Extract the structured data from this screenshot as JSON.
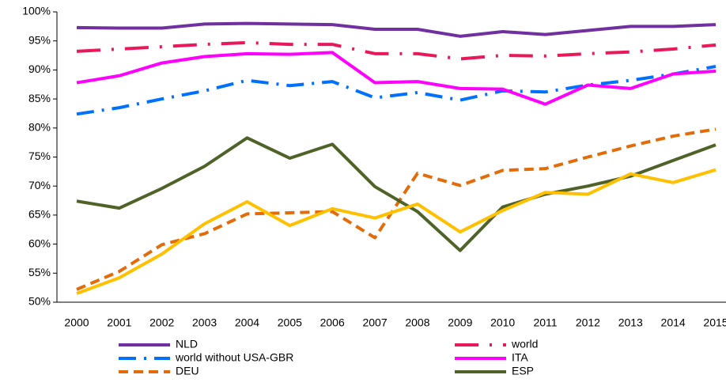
{
  "chart_data": {
    "type": "line",
    "categories": [
      "2000",
      "2001",
      "2002",
      "2003",
      "2004",
      "2005",
      "2006",
      "2007",
      "2008",
      "2009",
      "2010",
      "2011",
      "2012",
      "2013",
      "2014",
      "2015"
    ],
    "ylim": [
      50,
      100
    ],
    "yticks": [
      {
        "value": 50,
        "label": "50%"
      },
      {
        "value": 55,
        "label": "55%"
      },
      {
        "value": 60,
        "label": "60%"
      },
      {
        "value": 65,
        "label": "65%"
      },
      {
        "value": 70,
        "label": "70%"
      },
      {
        "value": 75,
        "label": "75%"
      },
      {
        "value": 80,
        "label": "80%"
      },
      {
        "value": 85,
        "label": "85%"
      },
      {
        "value": 90,
        "label": "90%"
      },
      {
        "value": 95,
        "label": "95%"
      },
      {
        "value": 100,
        "label": "100%"
      }
    ],
    "grid": false,
    "series": [
      {
        "name": "NLD",
        "color": "#7030a0",
        "dash": "solid",
        "values": [
          97.3,
          97.2,
          97.2,
          97.9,
          98.0,
          97.9,
          97.8,
          97.0,
          97.0,
          95.8,
          96.6,
          96.1,
          96.8,
          97.5,
          97.5,
          97.8
        ]
      },
      {
        "name": "world",
        "color": "#e8185a",
        "dash": "dash-dot-long",
        "values": [
          93.2,
          93.6,
          94.0,
          94.4,
          94.7,
          94.4,
          94.4,
          92.8,
          92.8,
          91.9,
          92.5,
          92.4,
          92.8,
          93.1,
          93.6,
          94.3
        ]
      },
      {
        "name": "world without USA-GBR",
        "color": "#0070ff",
        "dash": "dash-dot",
        "values": [
          82.4,
          83.5,
          85.0,
          86.4,
          88.2,
          87.3,
          88.0,
          85.2,
          86.1,
          84.8,
          86.4,
          86.2,
          87.4,
          88.2,
          89.3,
          90.6
        ]
      },
      {
        "name": "ITA",
        "color": "#ff00ff",
        "dash": "solid",
        "values": [
          87.8,
          89.0,
          91.2,
          92.3,
          92.8,
          92.7,
          93.0,
          87.8,
          88.0,
          86.8,
          86.7,
          84.1,
          87.4,
          86.8,
          89.3,
          89.8
        ]
      },
      {
        "name": "DEU",
        "color": "#e36c0a",
        "dash": "dashed",
        "values": [
          52.2,
          55.3,
          59.9,
          61.8,
          65.2,
          65.4,
          65.6,
          61.1,
          72.2,
          70.1,
          72.7,
          73.0,
          75.0,
          76.9,
          78.6,
          79.8
        ]
      },
      {
        "name": "ESP",
        "color": "#4f6228",
        "dash": "solid",
        "values": [
          67.4,
          66.2,
          69.6,
          73.4,
          78.3,
          74.8,
          77.2,
          69.9,
          65.6,
          58.9,
          66.4,
          68.6,
          70.0,
          71.7,
          74.4,
          77.1
        ]
      },
      {
        "color": "#ffc000",
        "dash": "solid",
        "values": [
          51.5,
          54.2,
          58.3,
          63.5,
          67.3,
          63.2,
          66.1,
          64.5,
          66.9,
          62.1,
          65.8,
          68.9,
          68.6,
          72.1,
          70.6,
          72.8
        ]
      }
    ]
  }
}
